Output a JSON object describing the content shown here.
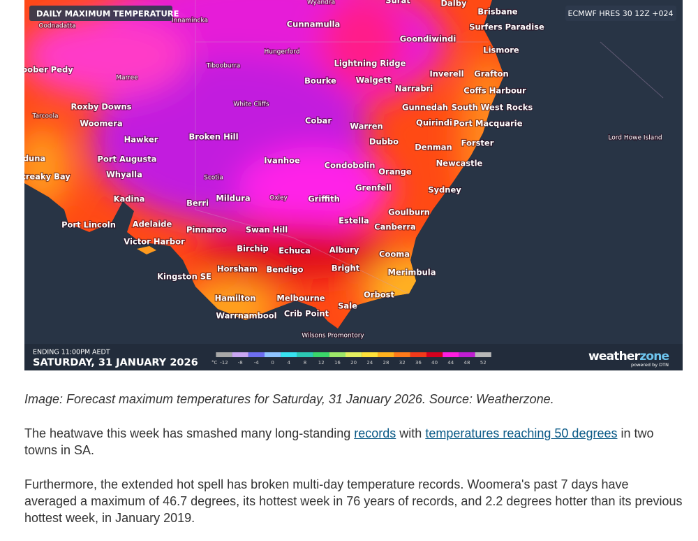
{
  "map": {
    "title": "DAILY MAXIMUM TEMPERATURE",
    "model": "ECMWF HRES 30 12Z +024",
    "ending": "ENDING 11:00PM AEDT",
    "date": "SATURDAY, 31 JANUARY 2026",
    "legend": {
      "unit": "°C",
      "ticks": [
        -12,
        -8,
        -4,
        0,
        4,
        8,
        12,
        16,
        20,
        24,
        28,
        32,
        36,
        40,
        44,
        48,
        52
      ],
      "colors": [
        "#a8a8a8",
        "#c9a6f2",
        "#6e6ef0",
        "#8fc4ff",
        "#38e2f0",
        "#2cc9b4",
        "#3ad66a",
        "#9ee86a",
        "#e4f060",
        "#ffe23a",
        "#ffb21e",
        "#ff7a1a",
        "#f23a1a",
        "#d4001e",
        "#ff1ee0",
        "#c01ed2",
        "#b8b8b8"
      ]
    },
    "logo": {
      "main": "weather",
      "accent": "zone",
      "sub": "powered by DTN"
    },
    "places": [
      "Wyandra",
      "Surat",
      "Dalby",
      "Brisbane",
      "Surfers Paradise",
      "Lismore",
      "Oodnadatta",
      "Innamincka",
      "Cunnamulla",
      "Goondiwindi",
      "Hungerford",
      "Tibooburra",
      "Lightning Ridge",
      "oober Pedy",
      "Marree",
      "Bourke",
      "Walgett",
      "Inverell",
      "Grafton",
      "Narrabri",
      "Coffs Harbour",
      "White Cliffs",
      "Roxby Downs",
      "Gunnedah",
      "South West Rocks",
      "Tarcoola",
      "Woomera",
      "Cobar",
      "Quirindi",
      "Port Macquarie",
      "Warren",
      "Hawker",
      "Broken Hill",
      "Dubbo",
      "Forster",
      "Denman",
      "Lord Howe Island",
      "duna",
      "Port Augusta",
      "Ivanhoe",
      "Condobolin",
      "Newcastle",
      "Orange",
      "treaky Bay",
      "Whyalla",
      "Scotia",
      "Grenfell",
      "Sydney",
      "Kadina",
      "Mildura",
      "Oxley",
      "Griffith",
      "Berri",
      "Goulburn",
      "Estella",
      "Port Lincoln",
      "Adelaide",
      "Canberra",
      "Pinnaroo",
      "Swan Hill",
      "Victor Harbor",
      "Birchip",
      "Echuca",
      "Albury",
      "Cooma",
      "Horsham",
      "Bendigo",
      "Bright",
      "Merimbula",
      "Kingston SE",
      "Orbost",
      "Hamilton",
      "Melbourne",
      "Sale",
      "Warrnambool",
      "Crib Point",
      "Wilsons Promontory"
    ]
  },
  "article": {
    "caption": "Image: Forecast maximum temperatures for Saturday, 31 January 2026. Source: Weatherzone.",
    "paragraphs": [
      [
        {
          "text": "The heatwave this week has smashed many long-standing "
        },
        {
          "text": "records",
          "link": true
        },
        {
          "text": " with "
        },
        {
          "text": "temperatures reaching 50 degrees",
          "link": true
        },
        {
          "text": " in two towns in SA."
        }
      ],
      [
        {
          "text": "Furthermore, the extended hot spell has broken multi-day temperature records. Woomera's past 7 days have averaged a maximum of 46.7 degrees, its hottest week in 76 years of records, and 2.2 degrees hotter than its previous hottest week, in January 2019."
        }
      ]
    ]
  }
}
